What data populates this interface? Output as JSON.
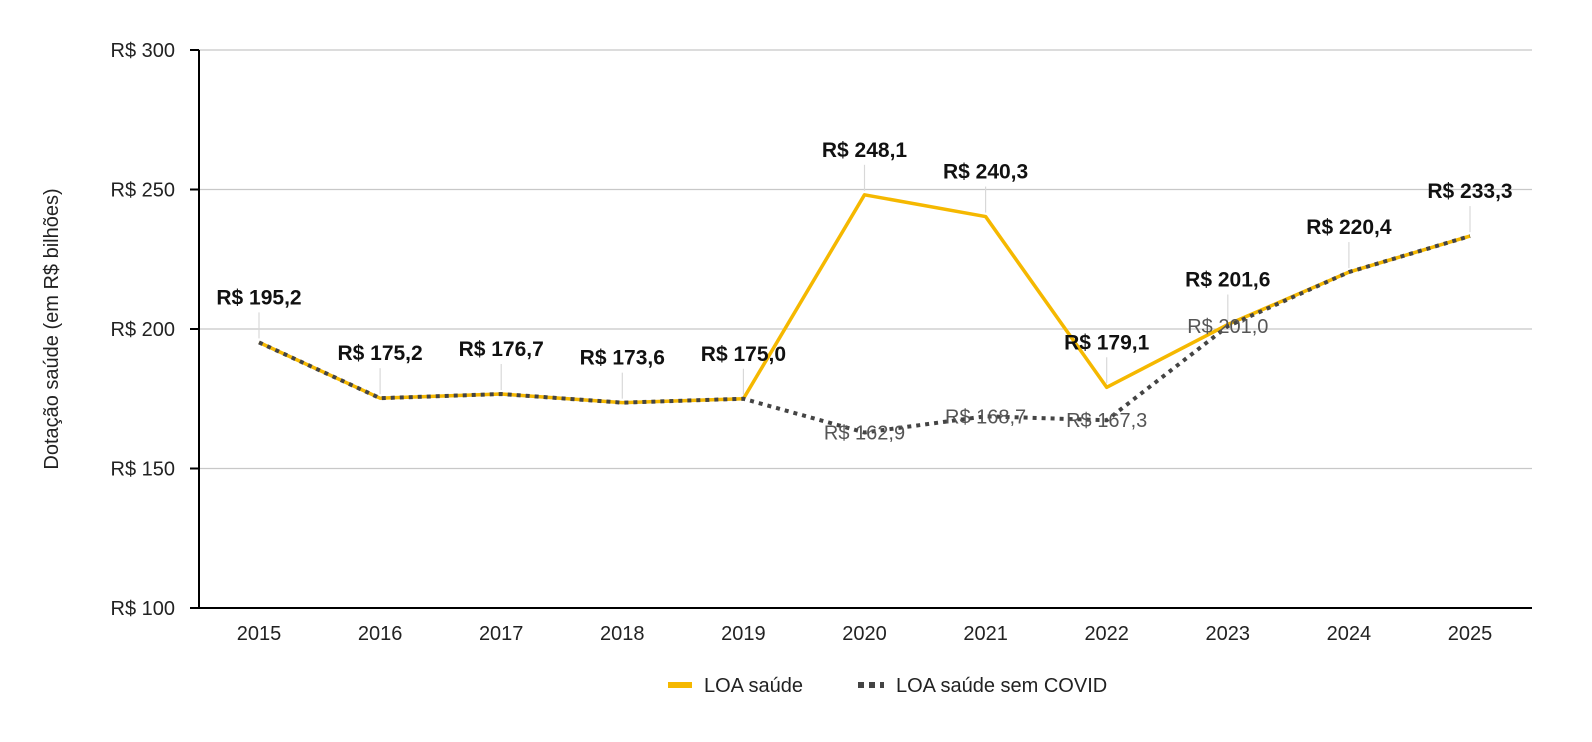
{
  "chart_data": {
    "type": "line",
    "ylabel": "Dotação saúde (em R$ bilhões)",
    "xlabel": "",
    "ylim": [
      100,
      300
    ],
    "yticks": [
      100,
      150,
      200,
      250,
      300
    ],
    "ytick_labels": [
      "R$ 100",
      "R$ 150",
      "R$ 200",
      "R$ 250",
      "R$ 300"
    ],
    "categories": [
      "2015",
      "2016",
      "2017",
      "2018",
      "2019",
      "2020",
      "2021",
      "2022",
      "2023",
      "2024",
      "2025"
    ],
    "grid": true,
    "legend_position": "bottom",
    "series": [
      {
        "name": "LOA saúde",
        "color": "#F5B800",
        "style": "solid",
        "values": [
          195.2,
          175.2,
          176.7,
          173.6,
          175.0,
          248.1,
          240.3,
          179.1,
          201.6,
          220.4,
          233.3
        ],
        "labels": [
          "R$ 195,2",
          "R$ 175,2",
          "R$ 176,7",
          "R$ 173,6",
          "R$ 175,0",
          "R$ 248,1",
          "R$ 240,3",
          "R$ 179,1",
          "R$ 201,6",
          "R$ 220,4",
          "R$ 233,3"
        ]
      },
      {
        "name": "LOA saúde sem COVID",
        "color": "#444444",
        "style": "dotted",
        "values": [
          195.2,
          175.2,
          176.7,
          173.6,
          175.0,
          162.9,
          168.7,
          167.3,
          201.0,
          220.4,
          233.3
        ],
        "labels": [
          "",
          "",
          "",
          "",
          "",
          "R$ 162,9",
          "R$ 168,7",
          "R$ 167,3",
          "R$ 201,0",
          "",
          ""
        ]
      }
    ]
  }
}
